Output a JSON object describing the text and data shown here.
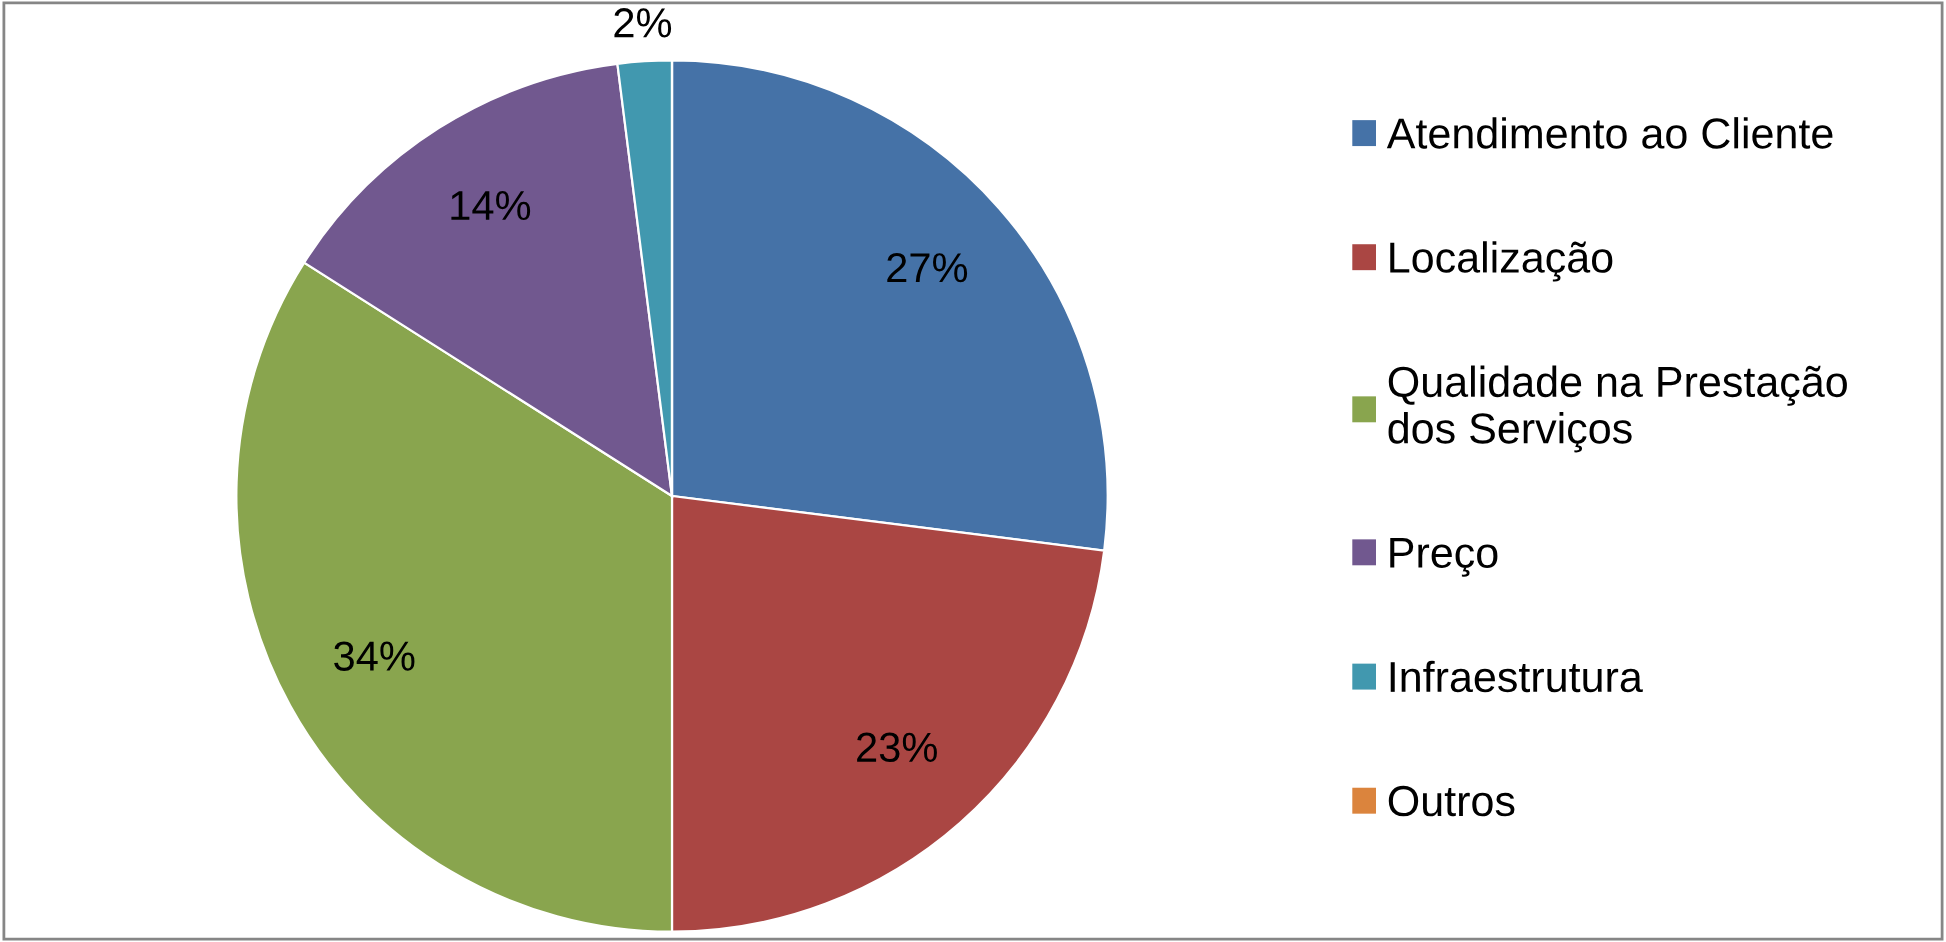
{
  "chart_data": {
    "type": "pie",
    "categories": [
      "Atendimento ao Cliente",
      "Localização",
      "Qualidade na Prestação dos Serviços",
      "Preço",
      "Infraestrutura",
      "Outros"
    ],
    "values": [
      27,
      23,
      34,
      14,
      2,
      0
    ],
    "colors": [
      "#4572a7",
      "#aa4643",
      "#89a54e",
      "#71588f",
      "#4198af",
      "#db843d"
    ],
    "value_labels": [
      "27%",
      "23%",
      "34%",
      "14%",
      "2%",
      null
    ],
    "legend": "right"
  }
}
